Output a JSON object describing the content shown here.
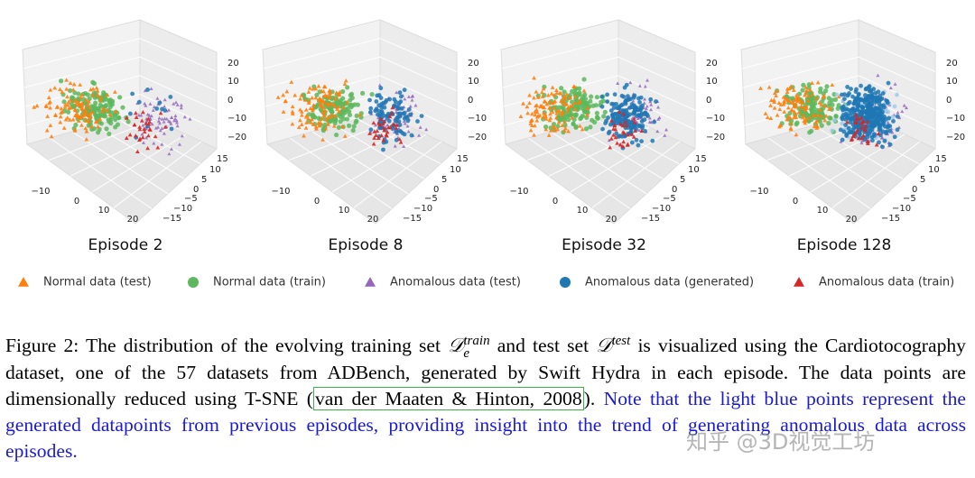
{
  "figure": {
    "panels": [
      {
        "title": "Episode 2"
      },
      {
        "title": "Episode 8"
      },
      {
        "title": "Episode 32"
      },
      {
        "title": "Episode 128"
      }
    ],
    "axes": {
      "x_ticks": [
        "−10",
        "0",
        "10",
        "20"
      ],
      "y_ticks": [
        "15",
        "10",
        "5",
        "0",
        "−5",
        "−10",
        "−15"
      ],
      "z_ticks": [
        "20",
        "10",
        "0",
        "−10",
        "−20"
      ]
    },
    "legend": [
      {
        "label": "Normal data (test)",
        "color": "#ff7f0e",
        "marker": "triangle"
      },
      {
        "label": "Normal data (train)",
        "color": "#5cb85c",
        "marker": "circle"
      },
      {
        "label": "Anomalous data (test)",
        "color": "#9467bd",
        "marker": "triangle"
      },
      {
        "label": "Anomalous data (generated)",
        "color": "#1f77b4",
        "marker": "circle"
      },
      {
        "label": "Anomalous data (train)",
        "color": "#d62728",
        "marker": "triangle"
      }
    ]
  },
  "caption": {
    "label": "Figure 2:",
    "text_1": "The distribution of the evolving training set",
    "math_1": {
      "symbol": "𝒟",
      "sub": "e",
      "sup": "train"
    },
    "text_2": "and test set",
    "math_2": {
      "symbol": "𝒟",
      "sup": "test"
    },
    "text_3": "is visualized using the Cardiotocography dataset, one of the 57 datasets from ADBench, generated by Swift Hydra in each episode. The data points are dimensionally reduced using T-SNE (",
    "citation": "van der Maaten & Hinton, 2008",
    "text_4": ").",
    "note": "Note that the light blue points represent the generated datapoints from previous episodes, providing insight into the trend of generating anomalous data across episodes."
  },
  "watermark": "知乎 @3D视觉工坊"
}
